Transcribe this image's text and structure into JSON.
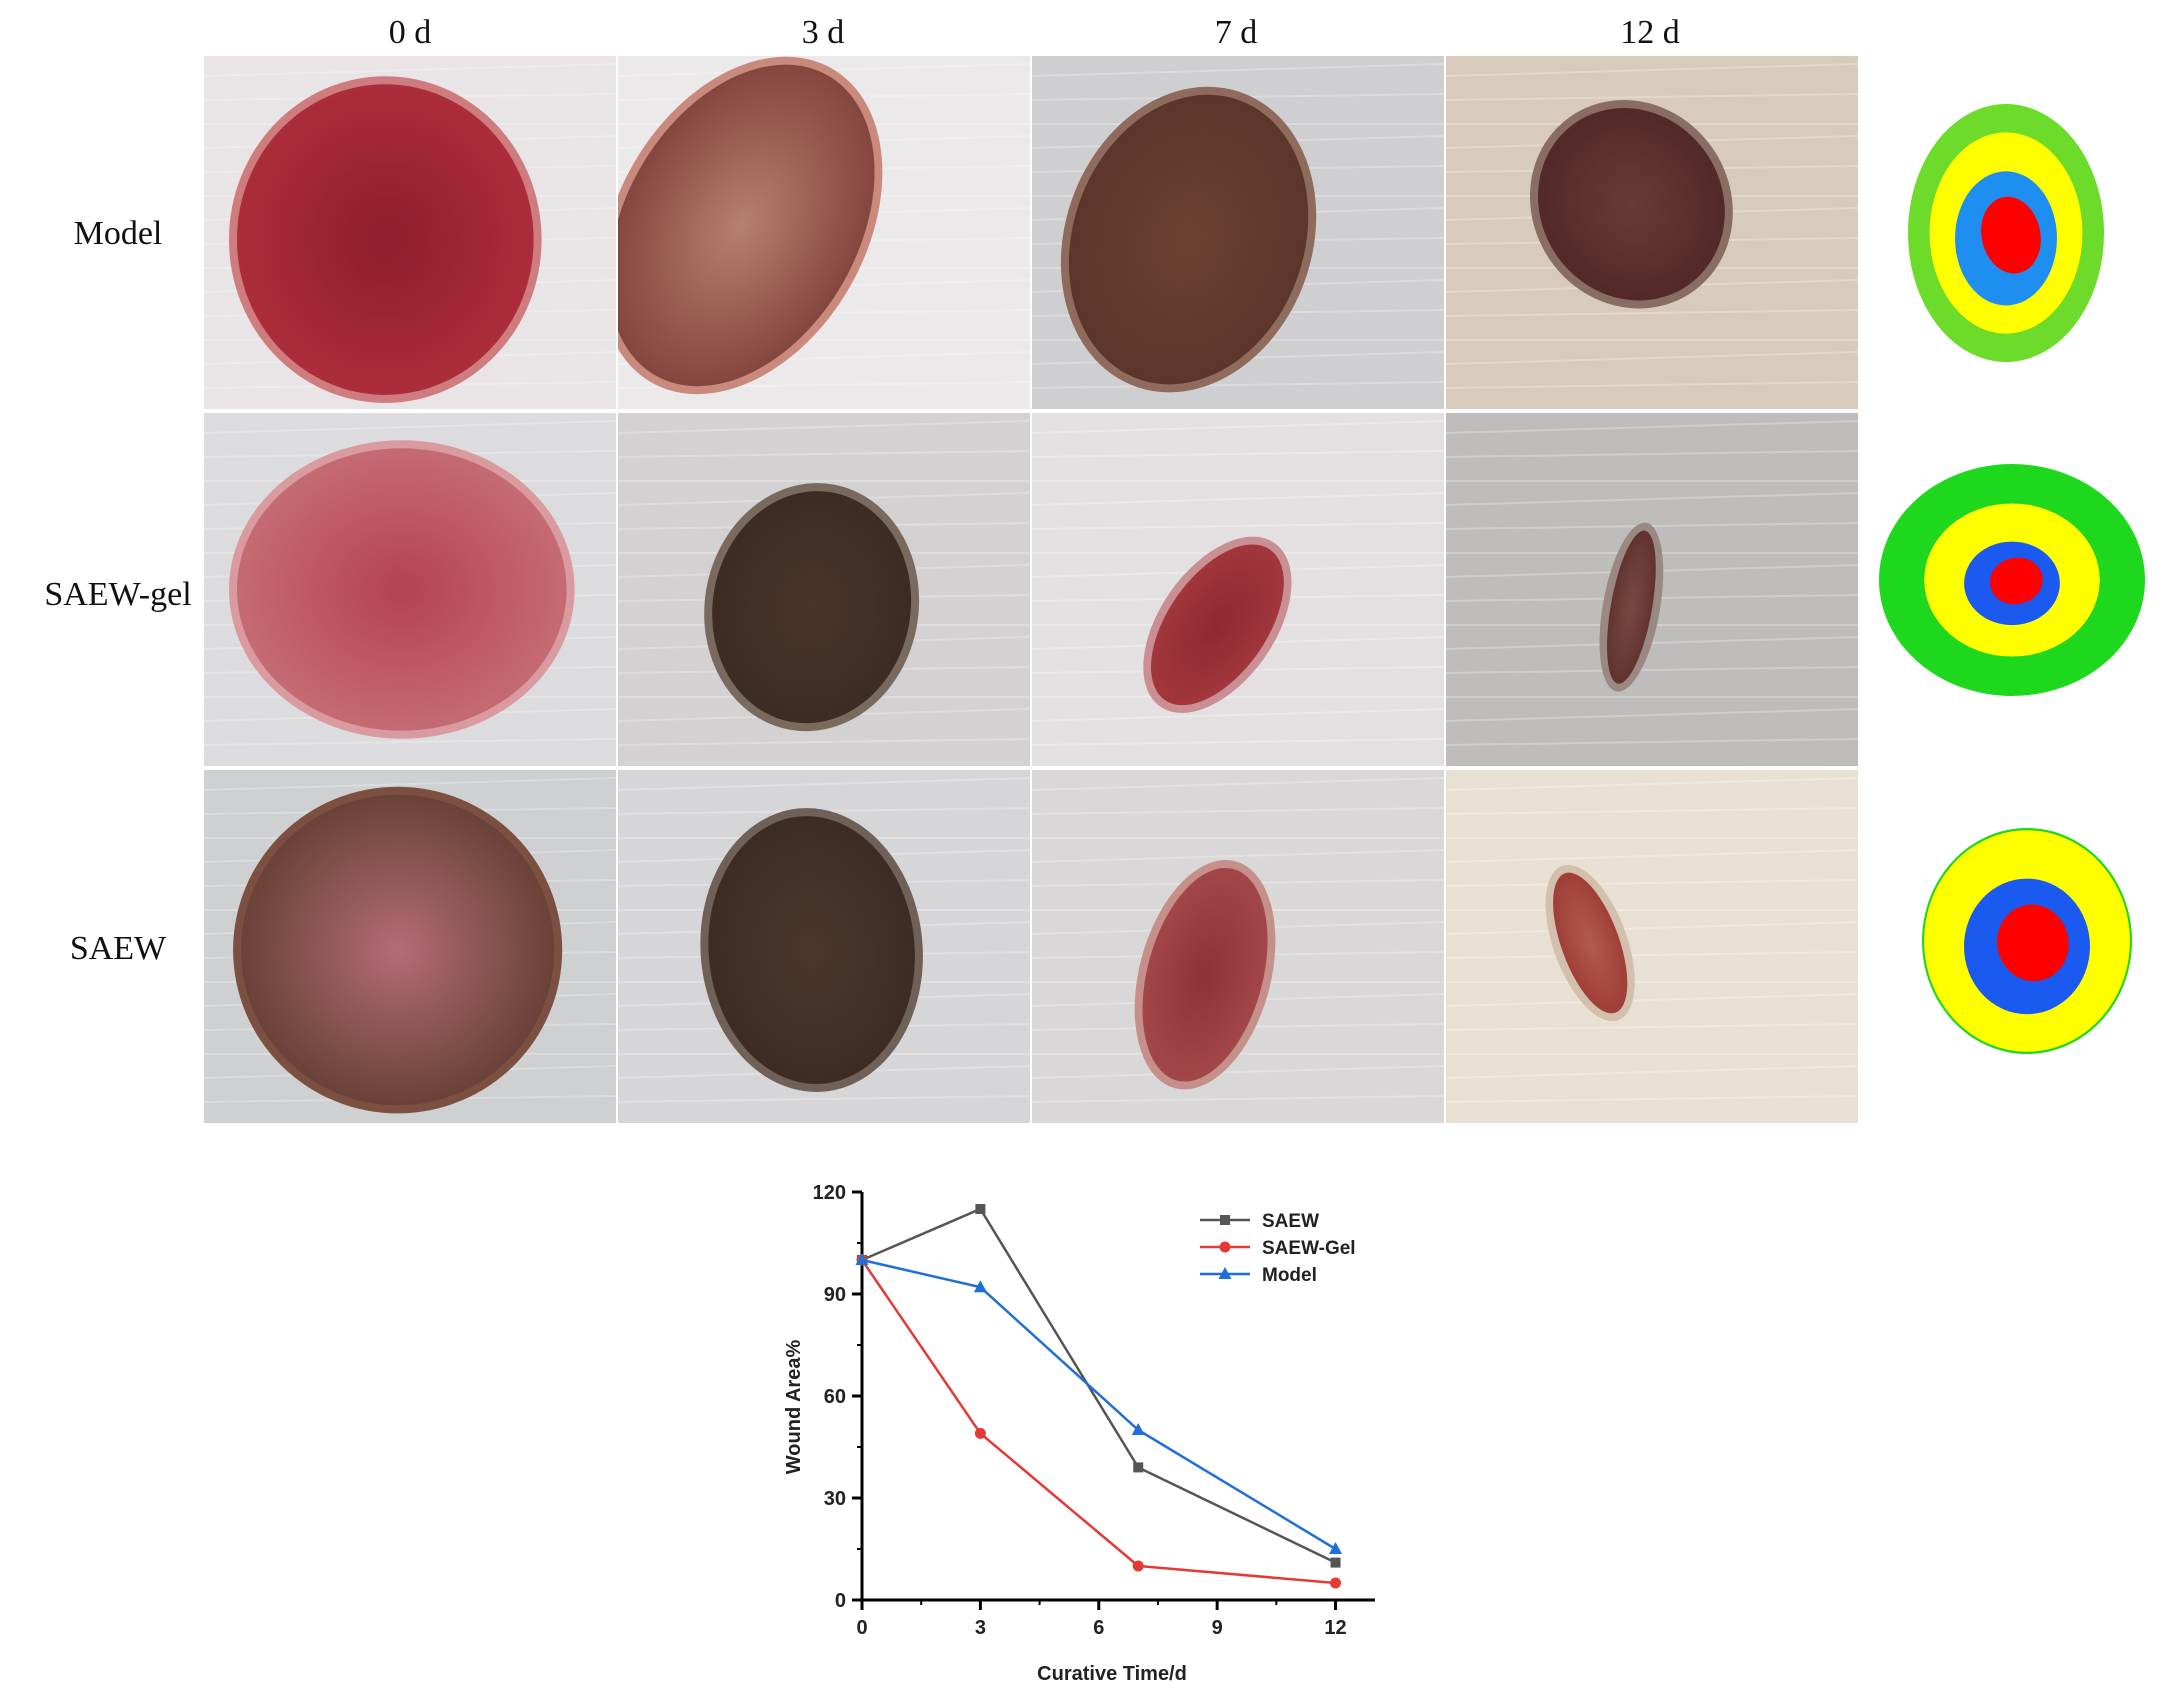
{
  "columns": [
    "0 d",
    "3 d",
    "7 d",
    "12 d"
  ],
  "rows": [
    "Model",
    "SAEW-gel",
    "SAEW"
  ],
  "photos": [
    [
      {
        "bg": "#e9e4e6",
        "w1": "#b1303d",
        "w2": "#8f1d2a",
        "edge": "#cf7c7e"
      },
      {
        "bg": "#ece9ea",
        "w1": "#7a3a34",
        "w2": "#b88070",
        "edge": "#c98a7d"
      },
      {
        "bg": "#cfcfd1",
        "w1": "#5a3428",
        "w2": "#6b4232",
        "edge": "#8f6b5e"
      },
      {
        "bg": "#d8cbbc",
        "w1": "#4d2624",
        "w2": "#6a3a35",
        "edge": "#8a6d62"
      }
    ],
    [
      {
        "bg": "#dcdcde",
        "w1": "#c9727a",
        "w2": "#b34350",
        "edge": "#d99aa0"
      },
      {
        "bg": "#d3d1d1",
        "w1": "#3a2a22",
        "w2": "#4a3528",
        "edge": "#7a6a5e"
      },
      {
        "bg": "#e4e0e2",
        "w1": "#a6393f",
        "w2": "#8b2a30",
        "edge": "#c98f93"
      },
      {
        "bg": "#bfbcbc",
        "w1": "#5c2f2c",
        "w2": "#7a4843",
        "edge": "#9a8883"
      }
    ],
    [
      {
        "bg": "#cfd0d2",
        "w1": "#5b3a2c",
        "w2": "#b46c74",
        "edge": "#7b5040"
      },
      {
        "bg": "#d6d6d8",
        "w1": "#3b2a22",
        "w2": "#4b372b",
        "edge": "#6f6058"
      },
      {
        "bg": "#d9d7d7",
        "w1": "#a64a4c",
        "w2": "#8f3236",
        "edge": "#c58f8a"
      },
      {
        "bg": "#e8e1d3",
        "w1": "#9b3a33",
        "w2": "#b35a4e",
        "edge": "#d3bfae"
      }
    ]
  ],
  "maps": [
    {
      "outer": "#6ddb2a",
      "ring2": "#ffff00",
      "ring3": "#1e8ef0",
      "core": "#ff0000"
    },
    {
      "outer": "#1ed81e",
      "ring2": "#ffff00",
      "ring3": "#1a5af0",
      "core": "#ff0000"
    },
    {
      "outer": "#1ed81e",
      "ring2": "#ffff00",
      "ring3": "#1a5af0",
      "core": "#ff0000"
    }
  ],
  "chart_data": {
    "type": "line",
    "title": "",
    "xlabel": "Curative Time/d",
    "ylabel": "Wound Area%",
    "xlim": [
      0,
      13
    ],
    "ylim": [
      0,
      120
    ],
    "xticks": [
      0,
      3,
      6,
      9,
      12
    ],
    "yticks": [
      0,
      30,
      60,
      90,
      120
    ],
    "grid": false,
    "legend_position": "top-right",
    "series": [
      {
        "name": "SAEW",
        "color": "#555555",
        "marker": "square",
        "x": [
          0,
          3,
          7,
          12
        ],
        "y": [
          100,
          115,
          39,
          11
        ]
      },
      {
        "name": "SAEW-Gel",
        "color": "#e53935",
        "marker": "circle",
        "x": [
          0,
          3,
          7,
          12
        ],
        "y": [
          100,
          49,
          10,
          5
        ]
      },
      {
        "name": "Model",
        "color": "#1e6fd9",
        "marker": "triangle",
        "x": [
          0,
          3,
          7,
          12
        ],
        "y": [
          100,
          92,
          50,
          15
        ]
      }
    ]
  }
}
